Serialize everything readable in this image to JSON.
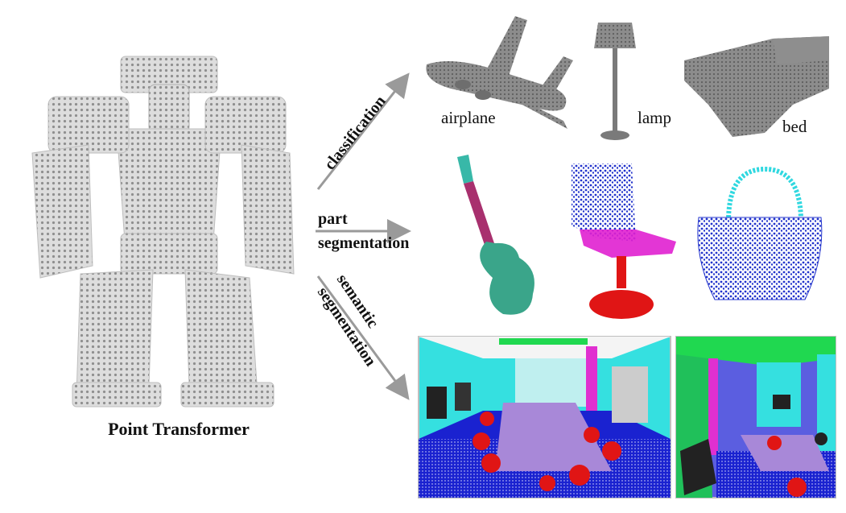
{
  "main_label": "Point Transformer",
  "tasks": {
    "classification": "classification",
    "part_seg_line1": "part",
    "part_seg_line2": "segmentation",
    "semantic_line1": "semantic",
    "semantic_line2": "segmentation"
  },
  "objects": {
    "airplane": "airplane",
    "lamp": "lamp",
    "bed": "bed"
  },
  "colors": {
    "arrow": "#9a9a9a",
    "cloud_gray": "#777777",
    "guitar_head": "#38b8a8",
    "guitar_neck": "#a8306e",
    "guitar_body": "#3aa58a",
    "chair_back": "#2233cc",
    "chair_seat": "#e020d0",
    "chair_base": "#e01515",
    "bag_handle": "#30d8e0",
    "bag_body": "#2233cc",
    "scene_wall": "#35e0e0",
    "scene_floor": "#1a22d0",
    "scene_table": "#a888d8",
    "scene_chair": "#e01515",
    "scene_ceiling": "#20d850",
    "scene_column": "#e030d0",
    "scene_board": "#222222",
    "scene_door": "#cccccc",
    "scene_wall2": "#5b5ee0"
  },
  "icons": {
    "robot": "robot-point-cloud-icon",
    "airplane": "airplane-point-cloud-icon",
    "lamp": "lamp-point-cloud-icon",
    "bed": "bed-point-cloud-icon",
    "guitar": "guitar-part-segmentation-icon",
    "chair": "chair-part-segmentation-icon",
    "bag": "bag-part-segmentation-icon"
  }
}
